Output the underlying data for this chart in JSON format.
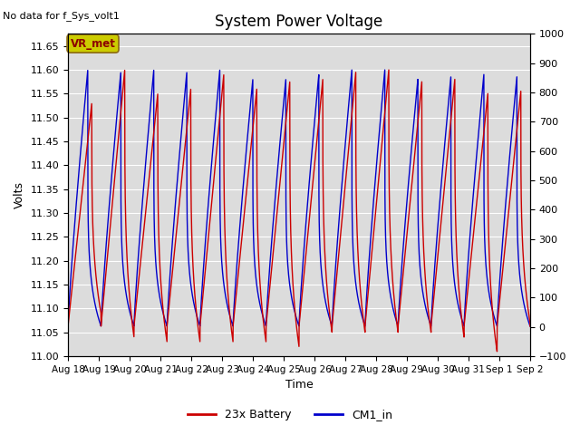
{
  "title": "System Power Voltage",
  "top_left_text": "No data for f_Sys_volt1",
  "ylabel_left": "Volts",
  "xlabel": "Time",
  "ylim_left": [
    11.0,
    11.675
  ],
  "ylim_right": [
    -100,
    1000
  ],
  "yticks_left": [
    11.0,
    11.05,
    11.1,
    11.15,
    11.2,
    11.25,
    11.3,
    11.35,
    11.4,
    11.45,
    11.5,
    11.55,
    11.6,
    11.65
  ],
  "yticks_right": [
    -100,
    0,
    100,
    200,
    300,
    400,
    500,
    600,
    700,
    800,
    900,
    1000
  ],
  "xtick_labels": [
    "Aug 18",
    "Aug 19",
    "Aug 20",
    "Aug 21",
    "Aug 22",
    "Aug 23",
    "Aug 24",
    "Aug 25",
    "Aug 26",
    "Aug 27",
    "Aug 28",
    "Aug 29",
    "Aug 30",
    "Aug 31",
    "Sep 1",
    "Sep 2"
  ],
  "color_red": "#cc0000",
  "color_blue": "#0000cc",
  "background_color": "#dcdcdc",
  "legend_labels": [
    "23x Battery",
    "CM1_in"
  ],
  "vr_met_box_color": "#cccc00",
  "vr_met_text": "VR_met",
  "num_cycles": 14,
  "total_days": 15.0,
  "red_peak": 11.6,
  "red_trough": 11.03,
  "red_base": 11.063,
  "blue_peak": 11.598,
  "blue_trough": 11.063,
  "blue_base": 11.063
}
